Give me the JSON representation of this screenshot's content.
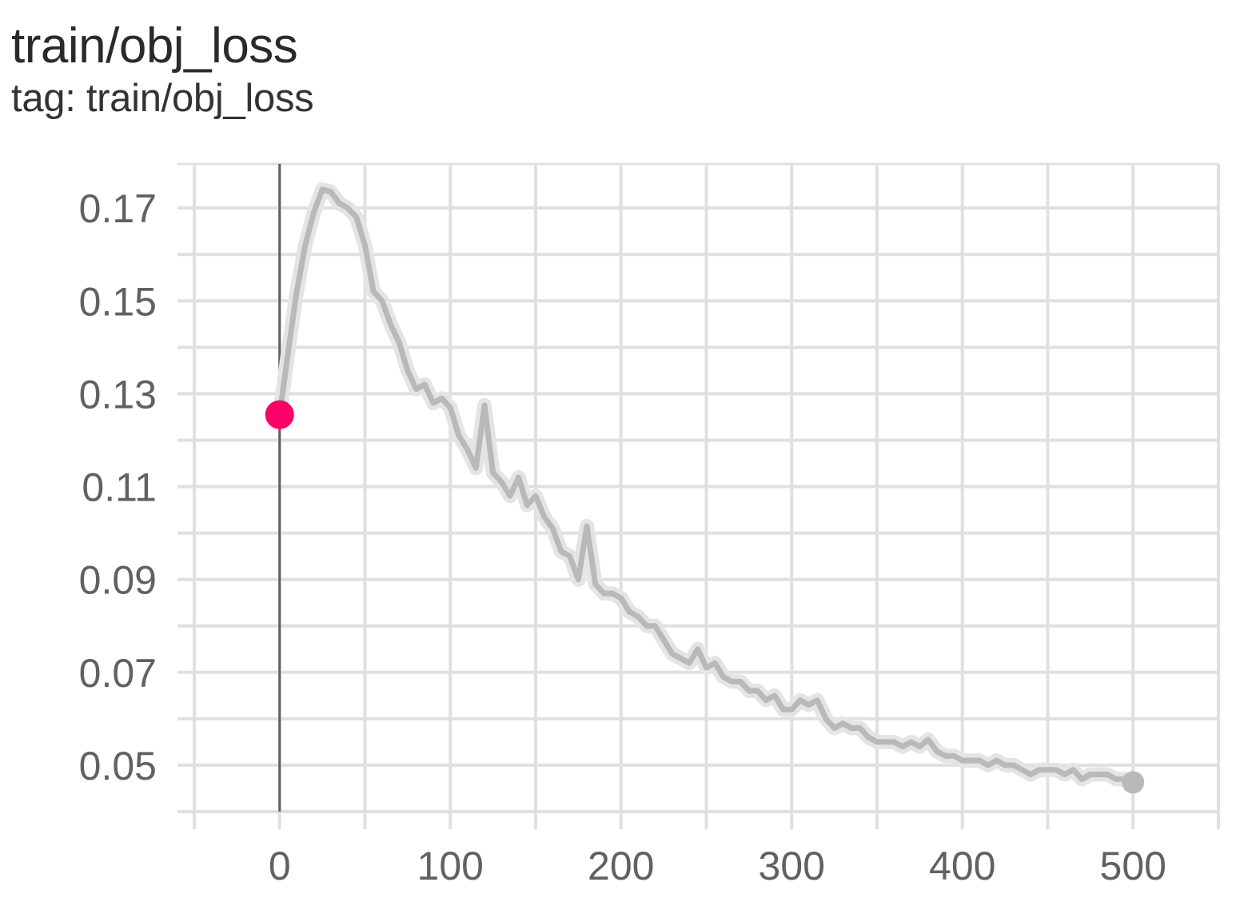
{
  "card": {
    "title": "train/obj_loss",
    "tag": "tag: train/obj_loss"
  },
  "chart_data": {
    "type": "line",
    "title": "train/obj_loss",
    "xlabel": "",
    "ylabel": "",
    "xlim": [
      -50,
      550
    ],
    "ylim": [
      0.04,
      0.1795
    ],
    "grid": true,
    "x_ticks": [
      0,
      100,
      200,
      300,
      400,
      500
    ],
    "x_minor_ticks": [
      -50,
      50,
      150,
      250,
      350,
      450,
      550
    ],
    "y_ticks": [
      0.05,
      0.07,
      0.09,
      0.11,
      0.13,
      0.15,
      0.17
    ],
    "y_tick_labels": [
      "0.05",
      "0.07",
      "0.09",
      "0.11",
      "0.13",
      "0.15",
      "0.17"
    ],
    "y_minor_ticks": [
      0.04,
      0.06,
      0.08,
      0.1,
      0.12,
      0.14,
      0.16
    ],
    "colors": {
      "line": "#b9b9b9",
      "line_raw": "#e4e4e4",
      "marker": "#ff0066",
      "grid": "#e0e0e0",
      "axis": "#9e9e9e",
      "cursor": "#616161"
    },
    "cursor_x": 0,
    "highlight_point": {
      "x": 0,
      "y": 0.1255
    },
    "end_point": {
      "x": 500,
      "y": 0.0463
    },
    "series": [
      {
        "x": [
          0,
          5,
          10,
          15,
          20,
          25,
          30,
          35,
          40,
          45,
          50,
          55,
          60,
          65,
          70,
          75,
          80,
          85,
          90,
          95,
          100,
          105,
          110,
          115,
          120,
          125,
          130,
          135,
          140,
          145,
          150,
          155,
          160,
          165,
          170,
          175,
          180,
          185,
          190,
          195,
          200,
          205,
          210,
          215,
          220,
          225,
          230,
          235,
          240,
          245,
          250,
          255,
          260,
          265,
          270,
          275,
          280,
          285,
          290,
          295,
          300,
          305,
          310,
          315,
          320,
          325,
          330,
          335,
          340,
          345,
          350,
          355,
          360,
          365,
          370,
          375,
          380,
          385,
          390,
          395,
          400,
          405,
          410,
          415,
          420,
          425,
          430,
          435,
          440,
          445,
          450,
          455,
          460,
          465,
          470,
          475,
          480,
          485,
          490,
          495,
          500
        ],
        "values": [
          0.1255,
          0.139,
          0.152,
          0.162,
          0.169,
          0.174,
          0.1735,
          0.171,
          0.17,
          0.168,
          0.162,
          0.152,
          0.15,
          0.145,
          0.141,
          0.135,
          0.131,
          0.132,
          0.128,
          0.129,
          0.127,
          0.121,
          0.118,
          0.114,
          0.1275,
          0.113,
          0.111,
          0.108,
          0.112,
          0.106,
          0.108,
          0.1035,
          0.101,
          0.096,
          0.095,
          0.09,
          0.1015,
          0.089,
          0.087,
          0.087,
          0.086,
          0.083,
          0.082,
          0.08,
          0.08,
          0.077,
          0.074,
          0.073,
          0.072,
          0.075,
          0.071,
          0.072,
          0.069,
          0.068,
          0.068,
          0.066,
          0.066,
          0.064,
          0.065,
          0.062,
          0.062,
          0.064,
          0.063,
          0.064,
          0.06,
          0.058,
          0.059,
          0.058,
          0.058,
          0.056,
          0.055,
          0.055,
          0.055,
          0.054,
          0.055,
          0.054,
          0.0555,
          0.053,
          0.052,
          0.052,
          0.051,
          0.051,
          0.051,
          0.05,
          0.051,
          0.05,
          0.05,
          0.049,
          0.048,
          0.049,
          0.049,
          0.049,
          0.048,
          0.049,
          0.047,
          0.048,
          0.048,
          0.048,
          0.047,
          0.047,
          0.0463
        ]
      }
    ]
  }
}
